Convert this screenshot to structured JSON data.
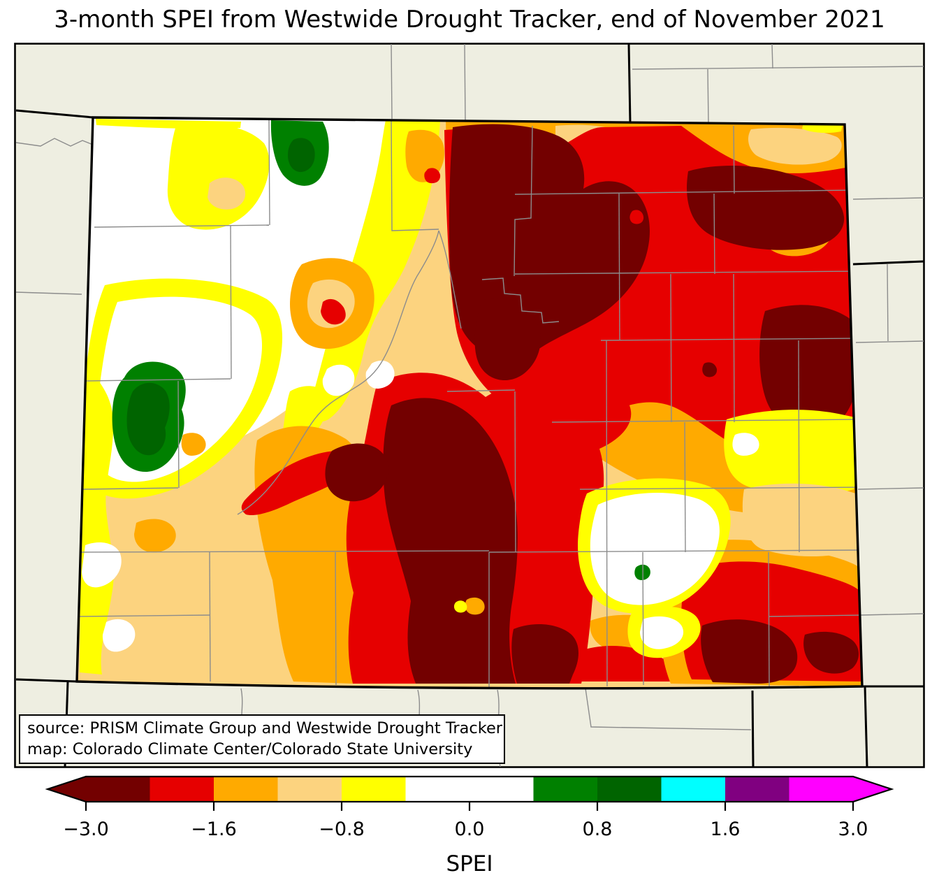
{
  "figure": {
    "title": "3-month SPEI from Westwide Drought Tracker, end of November 2021"
  },
  "annotation_box": {
    "line1": "source: PRISM Climate Group and Westwide Drought Tracker",
    "line2": "map: Colorado Climate Center/Colorado State University"
  },
  "palette": {
    "maroon": "#730000",
    "red": "#e60000",
    "orange": "#ffaa00",
    "tan": "#fcd37f",
    "yellow": "#ffff00",
    "white": "#ffffff",
    "green": "#008000",
    "darkgreen": "#006400",
    "cyan": "#00ffff",
    "purple": "#800080",
    "magenta": "#ff00ff",
    "background": "#eeeee1",
    "county_line": "#8c8c8c",
    "state_line": "#000000",
    "text": "#000000"
  },
  "chart_data": {
    "type": "heatmap",
    "subtype": "filled-contour choropleth map",
    "region": "Colorado, USA with surrounding state and county boundaries",
    "title": "3-month SPEI from Westwide Drought Tracker, end of November 2021",
    "variable": "SPEI",
    "legend_position": "bottom",
    "colorbar": {
      "axis_label": "SPEI",
      "extend": "both-arrows",
      "tick_labels": [
        "−3.0",
        "−1.6",
        "−0.8",
        "0.0",
        "0.8",
        "1.6",
        "3.0"
      ],
      "tick_values": [
        -3.0,
        -1.6,
        -0.8,
        0.0,
        0.8,
        1.6,
        3.0
      ],
      "ticks": [
        {
          "label": "−3.0",
          "slot": 0
        },
        {
          "label": "−1.6",
          "slot": 2
        },
        {
          "label": "−0.8",
          "slot": 4
        },
        {
          "label": "0.0",
          "slot": 6
        },
        {
          "label": "0.8",
          "slot": 8
        },
        {
          "label": "1.6",
          "slot": 10
        },
        {
          "label": "3.0",
          "slot": 12
        }
      ],
      "segments": [
        {
          "color": "maroon",
          "slots": 1
        },
        {
          "color": "red",
          "slots": 1
        },
        {
          "color": "orange",
          "slots": 1
        },
        {
          "color": "tan",
          "slots": 1
        },
        {
          "color": "yellow",
          "slots": 1
        },
        {
          "color": "white",
          "slots": 2
        },
        {
          "color": "green",
          "slots": 1
        },
        {
          "color": "darkgreen",
          "slots": 1
        },
        {
          "color": "cyan",
          "slots": 1
        },
        {
          "color": "purple",
          "slots": 1
        },
        {
          "color": "magenta",
          "slots": 1
        }
      ]
    }
  }
}
